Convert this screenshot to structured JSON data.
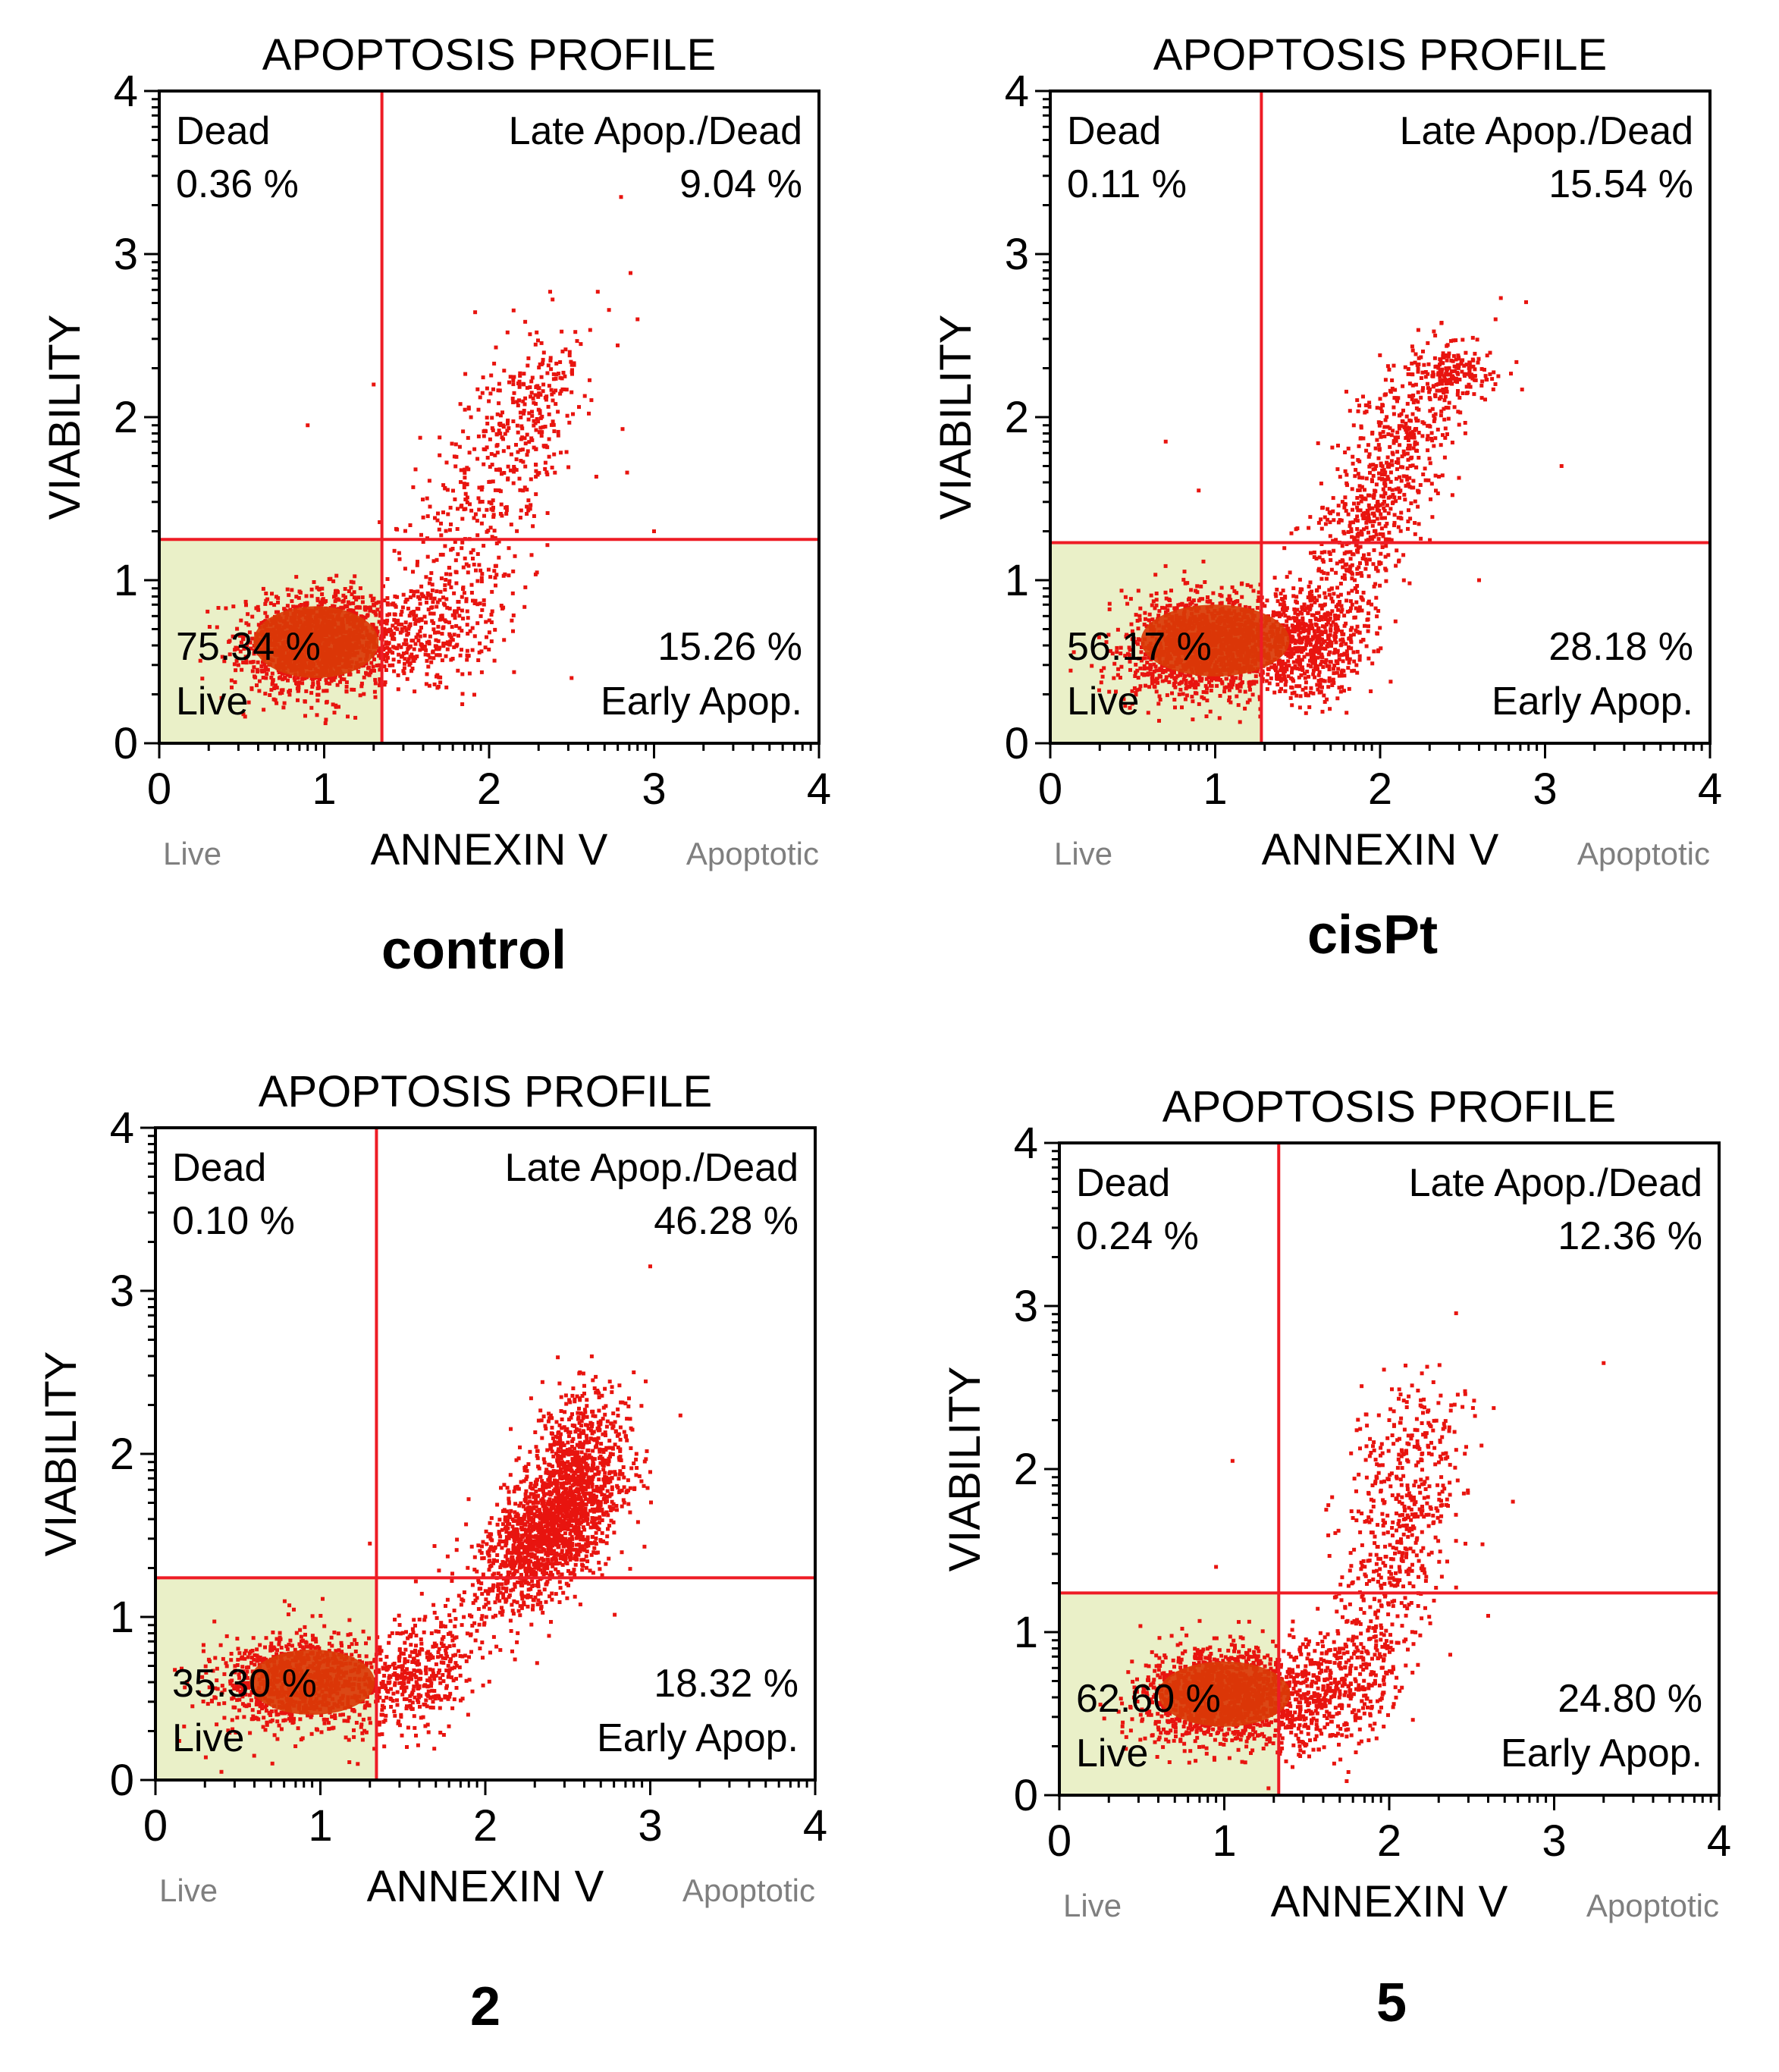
{
  "colors": {
    "dots": "#e8140f",
    "dense_core": "#d93a07",
    "gate_line": "#ee1c25",
    "live_fill": "#eaf0c8",
    "axis": "#000000",
    "sublabel": "#7f7f7f"
  },
  "chart_data": [
    {
      "type": "scatter",
      "panel_label": "control",
      "title": "APOPTOSIS PROFILE",
      "xlabel": "ANNEXIN V",
      "ylabel": "VIABILITY",
      "x_sublabel_left": "Live",
      "x_sublabel_right": "Apoptotic",
      "xlim": [
        0,
        4
      ],
      "ylim": [
        0,
        4
      ],
      "xticks": [
        "0",
        "1",
        "2",
        "3",
        "4"
      ],
      "yticks": [
        "0",
        "1",
        "2",
        "3",
        "4"
      ],
      "gate": {
        "x": 1.35,
        "y": 1.25
      },
      "quadrants": {
        "dead": {
          "name": "Dead",
          "value": "0.36 %"
        },
        "late": {
          "name": "Late Apop./Dead",
          "value": "9.04 %"
        },
        "live": {
          "name": "Live",
          "value": "75.34 %"
        },
        "early": {
          "name": "Early Apop.",
          "value": "15.26 %"
        }
      },
      "populations": [
        {
          "cx": 0.95,
          "cy": 0.62,
          "sx": 0.22,
          "sy": 0.15,
          "n": 1500,
          "rho": 0.1
        },
        {
          "cx": 1.6,
          "cy": 0.68,
          "sx": 0.22,
          "sy": 0.17,
          "n": 360,
          "rho": 0.25
        },
        {
          "cx": 2.0,
          "cy": 1.55,
          "sx": 0.28,
          "sy": 0.45,
          "n": 380,
          "rho": 0.6
        },
        {
          "cx": 2.25,
          "cy": 2.1,
          "sx": 0.15,
          "sy": 0.2,
          "n": 150,
          "rho": 0.3
        }
      ],
      "core": {
        "cx": 0.95,
        "cy": 0.62,
        "rx": 0.38,
        "ry": 0.22
      },
      "outliers": [
        [
          2.8,
          3.35
        ],
        [
          2.9,
          2.6
        ],
        [
          0.9,
          1.95
        ],
        [
          1.3,
          2.2
        ],
        [
          3.0,
          1.3
        ],
        [
          2.5,
          0.4
        ]
      ]
    },
    {
      "type": "scatter",
      "panel_label": "cisPt",
      "title": "APOPTOSIS PROFILE",
      "xlabel": "ANNEXIN V",
      "ylabel": "VIABILITY",
      "x_sublabel_left": "Live",
      "x_sublabel_right": "Apoptotic",
      "xlim": [
        0,
        4
      ],
      "ylim": [
        0,
        4
      ],
      "xticks": [
        "0",
        "1",
        "2",
        "3",
        "4"
      ],
      "yticks": [
        "0",
        "1",
        "2",
        "3",
        "4"
      ],
      "gate": {
        "x": 1.28,
        "y": 1.23
      },
      "quadrants": {
        "dead": {
          "name": "Dead",
          "value": "0.11 %"
        },
        "late": {
          "name": "Late Apop./Dead",
          "value": "15.54 %"
        },
        "live": {
          "name": "Live",
          "value": "56.17 %"
        },
        "early": {
          "name": "Early Apop.",
          "value": "28.18 %"
        }
      },
      "populations": [
        {
          "cx": 0.95,
          "cy": 0.6,
          "sx": 0.24,
          "sy": 0.16,
          "n": 1400,
          "rho": 0.1
        },
        {
          "cx": 1.55,
          "cy": 0.6,
          "sx": 0.2,
          "sy": 0.16,
          "n": 600,
          "rho": 0.2
        },
        {
          "cx": 1.9,
          "cy": 1.3,
          "sx": 0.22,
          "sy": 0.35,
          "n": 450,
          "rho": 0.7
        },
        {
          "cx": 2.15,
          "cy": 1.95,
          "sx": 0.22,
          "sy": 0.3,
          "n": 320,
          "rho": 0.6
        },
        {
          "cx": 2.45,
          "cy": 2.28,
          "sx": 0.16,
          "sy": 0.06,
          "n": 120,
          "rho": 0.0
        }
      ],
      "core": {
        "cx": 1.0,
        "cy": 0.63,
        "rx": 0.45,
        "ry": 0.22
      },
      "outliers": [
        [
          0.7,
          1.85
        ],
        [
          0.9,
          1.55
        ],
        [
          2.7,
          2.6
        ],
        [
          2.6,
          1.0
        ],
        [
          3.1,
          1.7
        ]
      ]
    },
    {
      "type": "scatter",
      "panel_label": "2",
      "title": "APOPTOSIS PROFILE",
      "xlabel": "ANNEXIN V",
      "ylabel": "VIABILITY",
      "x_sublabel_left": "Live",
      "x_sublabel_right": "Apoptotic",
      "xlim": [
        0,
        4
      ],
      "ylim": [
        0,
        4
      ],
      "xticks": [
        "0",
        "1",
        "2",
        "3",
        "4"
      ],
      "yticks": [
        "0",
        "1",
        "2",
        "3",
        "4"
      ],
      "gate": {
        "x": 1.34,
        "y": 1.24
      },
      "quadrants": {
        "dead": {
          "name": "Dead",
          "value": "0.10 %"
        },
        "late": {
          "name": "Late Apop./Dead",
          "value": "46.28 %"
        },
        "live": {
          "name": "Live",
          "value": "35.30 %"
        },
        "early": {
          "name": "Early Apop.",
          "value": "18.32 %"
        }
      },
      "populations": [
        {
          "cx": 0.85,
          "cy": 0.6,
          "sx": 0.25,
          "sy": 0.15,
          "n": 900,
          "rho": 0.1
        },
        {
          "cx": 1.55,
          "cy": 0.65,
          "sx": 0.22,
          "sy": 0.2,
          "n": 450,
          "rho": 0.4
        },
        {
          "cx": 2.4,
          "cy": 1.55,
          "sx": 0.22,
          "sy": 0.25,
          "n": 1600,
          "rho": 0.55
        },
        {
          "cx": 2.55,
          "cy": 2.05,
          "sx": 0.14,
          "sy": 0.22,
          "n": 350,
          "rho": 0.3
        }
      ],
      "core": {
        "cx": 0.95,
        "cy": 0.6,
        "rx": 0.38,
        "ry": 0.2
      },
      "outliers": [
        [
          3.0,
          3.15
        ],
        [
          2.9,
          2.5
        ],
        [
          0.4,
          0.05
        ],
        [
          1.3,
          1.45
        ]
      ]
    },
    {
      "type": "scatter",
      "panel_label": "5",
      "title": "APOPTOSIS PROFILE",
      "xlabel": "ANNEXIN V",
      "ylabel": "VIABILITY",
      "x_sublabel_left": "Live",
      "x_sublabel_right": "Apoptotic",
      "xlim": [
        0,
        4
      ],
      "ylim": [
        0,
        4
      ],
      "xticks": [
        "0",
        "1",
        "2",
        "3",
        "4"
      ],
      "yticks": [
        "0",
        "1",
        "2",
        "3",
        "4"
      ],
      "gate": {
        "x": 1.33,
        "y": 1.24
      },
      "quadrants": {
        "dead": {
          "name": "Dead",
          "value": "0.24 %"
        },
        "late": {
          "name": "Late Apop./Dead",
          "value": "12.36 %"
        },
        "live": {
          "name": "Live",
          "value": "62.60 %"
        },
        "early": {
          "name": "Early Apop.",
          "value": "24.80 %"
        }
      },
      "populations": [
        {
          "cx": 0.95,
          "cy": 0.62,
          "sx": 0.22,
          "sy": 0.15,
          "n": 1300,
          "rho": 0.1
        },
        {
          "cx": 1.6,
          "cy": 0.62,
          "sx": 0.22,
          "sy": 0.18,
          "n": 500,
          "rho": 0.3
        },
        {
          "cx": 2.0,
          "cy": 1.3,
          "sx": 0.2,
          "sy": 0.4,
          "n": 350,
          "rho": 0.6
        },
        {
          "cx": 2.1,
          "cy": 2.0,
          "sx": 0.18,
          "sy": 0.3,
          "n": 250,
          "rho": 0.3
        }
      ],
      "core": {
        "cx": 1.0,
        "cy": 0.62,
        "rx": 0.4,
        "ry": 0.2
      },
      "outliers": [
        [
          3.3,
          2.65
        ],
        [
          1.05,
          2.05
        ],
        [
          0.95,
          1.4
        ],
        [
          2.75,
          1.8
        ],
        [
          2.6,
          1.1
        ]
      ]
    }
  ]
}
